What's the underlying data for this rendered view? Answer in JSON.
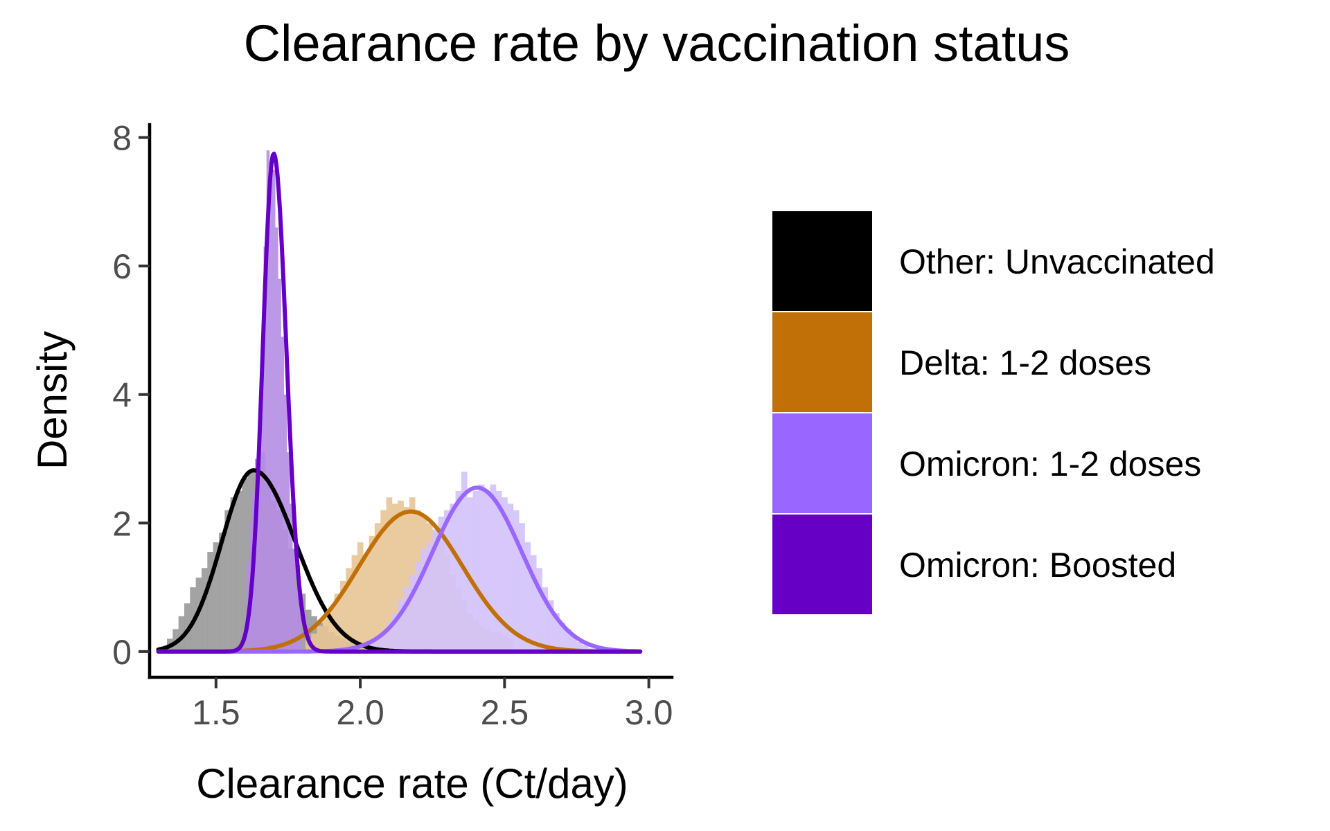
{
  "chart_data": {
    "type": "area",
    "title": "Clearance rate by vaccination status",
    "xlabel": "Clearance rate (Ct/day)",
    "ylabel": "Density",
    "xlim": [
      1.27,
      3.08
    ],
    "ylim": [
      -0.4,
      8.2
    ],
    "x_ticks": [
      1.5,
      2.0,
      2.5,
      3.0
    ],
    "x_tick_labels": [
      "1.5",
      "2.0",
      "2.5",
      "3.0"
    ],
    "y_ticks": [
      0,
      2,
      4,
      6,
      8
    ],
    "y_tick_labels": [
      "0",
      "2",
      "4",
      "6",
      "8"
    ],
    "grid": false,
    "legend_position": "right",
    "series": [
      {
        "name": "Other: Unvaccinated",
        "color": "#000000",
        "hist_color": "#999999",
        "curve": {
          "peak_x": 1.63,
          "peak_y": 2.82,
          "sd_left": 0.11,
          "sd_right": 0.145,
          "x_from": 1.3,
          "x_to": 2.97
        },
        "histogram": {
          "bins": [
            1.34,
            1.36,
            1.38,
            1.4,
            1.42,
            1.44,
            1.46,
            1.48,
            1.5,
            1.52,
            1.54,
            1.56,
            1.58,
            1.6,
            1.62,
            1.64,
            1.66,
            1.68,
            1.7,
            1.72,
            1.74,
            1.76,
            1.78,
            1.8,
            1.82,
            1.84,
            1.86,
            1.88,
            1.9,
            1.92,
            1.94,
            1.96,
            1.98,
            2.0
          ],
          "density": [
            0.2,
            0.35,
            0.55,
            0.75,
            1.0,
            1.15,
            1.3,
            1.55,
            1.7,
            1.85,
            2.2,
            2.4,
            2.5,
            2.7,
            2.8,
            2.85,
            3.1,
            2.6,
            2.35,
            2.2,
            1.9,
            1.6,
            1.35,
            0.9,
            0.65,
            0.55,
            0.45,
            0.4,
            0.3,
            0.25,
            0.2,
            0.15,
            0.12,
            0.1
          ]
        }
      },
      {
        "name": "Delta: 1-2 doses",
        "color": "#C07007",
        "hist_color": "#E8C596",
        "curve": {
          "peak_x": 2.175,
          "peak_y": 2.18,
          "sd_left": 0.18,
          "sd_right": 0.18,
          "x_from": 1.3,
          "x_to": 2.97
        },
        "histogram": {
          "bins": [
            1.82,
            1.84,
            1.86,
            1.88,
            1.9,
            1.92,
            1.94,
            1.96,
            1.98,
            2.0,
            2.02,
            2.04,
            2.06,
            2.08,
            2.1,
            2.12,
            2.14,
            2.16,
            2.18,
            2.2,
            2.22,
            2.24,
            2.26,
            2.28,
            2.3,
            2.32,
            2.34,
            2.36,
            2.38,
            2.4,
            2.42,
            2.44,
            2.46,
            2.48,
            2.5,
            2.52
          ],
          "density": [
            0.2,
            0.28,
            0.4,
            0.55,
            0.7,
            0.9,
            1.1,
            1.3,
            1.5,
            1.7,
            1.5,
            1.8,
            2.0,
            2.2,
            2.4,
            2.3,
            2.35,
            2.25,
            2.4,
            2.2,
            2.1,
            2.0,
            1.85,
            1.7,
            1.5,
            1.2,
            1.0,
            0.8,
            0.6,
            0.5,
            0.4,
            0.35,
            0.3,
            0.3,
            0.25,
            0.2
          ]
        }
      },
      {
        "name": "Omicron: 1-2 doses",
        "color": "#9966FF",
        "hist_color": "#D3C2FB",
        "curve": {
          "peak_x": 2.405,
          "peak_y": 2.55,
          "sd_left": 0.155,
          "sd_right": 0.155,
          "x_from": 1.3,
          "x_to": 2.97
        },
        "histogram": {
          "bins": [
            2.04,
            2.06,
            2.08,
            2.1,
            2.12,
            2.14,
            2.16,
            2.18,
            2.2,
            2.22,
            2.24,
            2.26,
            2.28,
            2.3,
            2.32,
            2.34,
            2.36,
            2.38,
            2.4,
            2.42,
            2.44,
            2.46,
            2.48,
            2.5,
            2.52,
            2.54,
            2.56,
            2.58,
            2.6,
            2.62,
            2.64,
            2.66,
            2.68,
            2.7,
            2.72,
            2.74,
            2.76,
            2.78,
            2.8
          ],
          "density": [
            0.15,
            0.2,
            0.3,
            0.45,
            0.6,
            0.8,
            1.0,
            1.2,
            1.4,
            1.6,
            1.7,
            1.9,
            2.1,
            2.2,
            2.3,
            2.5,
            2.8,
            2.4,
            2.5,
            2.6,
            2.5,
            2.6,
            2.5,
            2.4,
            2.3,
            2.2,
            2.0,
            1.7,
            1.5,
            1.3,
            1.0,
            0.8,
            0.6,
            0.45,
            0.35,
            0.25,
            0.15,
            0.1,
            0.05
          ]
        }
      },
      {
        "name": "Omicron: Boosted",
        "color": "#6600C5",
        "hist_color": "#B58DE3",
        "curve": {
          "peak_x": 1.7,
          "peak_y": 7.75,
          "sd_left": 0.038,
          "sd_right": 0.044,
          "x_from": 1.3,
          "x_to": 2.97
        },
        "histogram": {
          "bins": [
            1.61,
            1.62,
            1.63,
            1.64,
            1.65,
            1.66,
            1.67,
            1.68,
            1.69,
            1.7,
            1.71,
            1.72,
            1.73,
            1.74,
            1.75,
            1.76,
            1.77,
            1.78,
            1.79
          ],
          "density": [
            1.4,
            2.0,
            2.5,
            3.0,
            3.4,
            4.8,
            6.3,
            7.8,
            7.6,
            7.5,
            6.6,
            5.8,
            4.9,
            4.0,
            3.1,
            2.3,
            1.6,
            1.0,
            0.6
          ]
        }
      }
    ]
  }
}
